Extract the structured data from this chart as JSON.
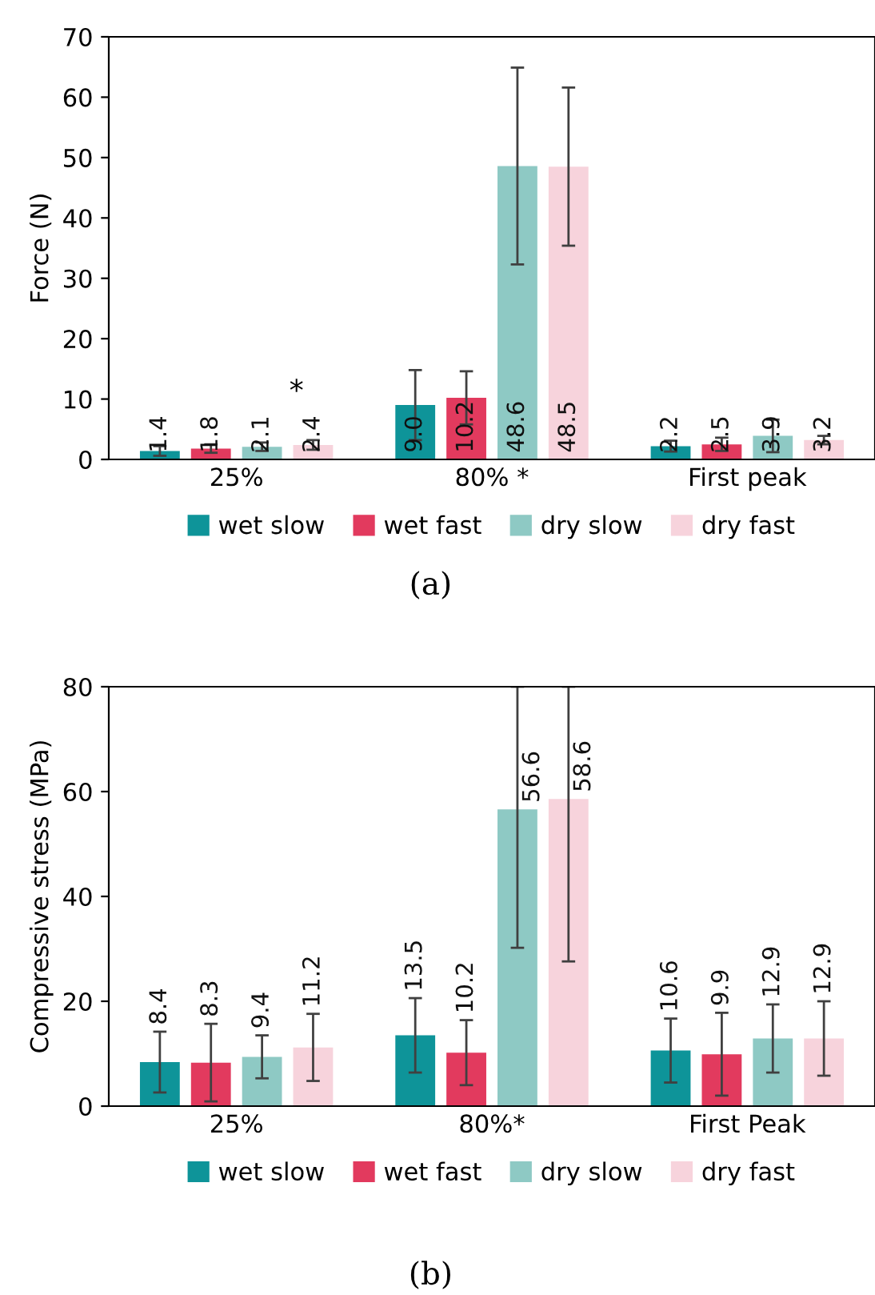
{
  "chart_data": [
    {
      "type": "bar",
      "title": "(a)",
      "ylabel": "Force (N)",
      "categories": [
        "25%",
        "80% *",
        "First peak"
      ],
      "ylim": [
        0,
        70
      ],
      "yticks": [
        0,
        10,
        20,
        30,
        40,
        50,
        60,
        70
      ],
      "grid": false,
      "legend": "bottom",
      "series": [
        {
          "name": "wet slow",
          "color": "#0e9499",
          "values": [
            1.4,
            9.0,
            2.2
          ],
          "value_labels": [
            "1.4",
            "9.0",
            "2.2"
          ],
          "errors": [
            0.8,
            5.8,
            0.9
          ]
        },
        {
          "name": "wet fast",
          "color": "#e23a5e",
          "values": [
            1.8,
            10.2,
            2.5
          ],
          "value_labels": [
            "1.8",
            "10.2",
            "2.5"
          ],
          "errors": [
            0.7,
            4.4,
            1.1
          ]
        },
        {
          "name": "dry slow",
          "color": "#8ec9c4",
          "values": [
            2.1,
            48.6,
            3.9
          ],
          "value_labels": [
            "2.1",
            "48.6",
            "3.9"
          ],
          "errors": [
            0.7,
            16.3,
            2.7
          ]
        },
        {
          "name": "dry fast",
          "color": "#f7d3dc",
          "values": [
            2.4,
            48.5,
            3.2
          ],
          "value_labels": [
            "2.4",
            "48.5",
            "3.2"
          ],
          "errors": [
            0.8,
            13.1,
            0.7
          ]
        }
      ],
      "annotations": [
        "*"
      ]
    },
    {
      "type": "bar",
      "title": "(b)",
      "ylabel": "Compressive stress (MPa)",
      "categories": [
        "25%",
        "80%*",
        "First Peak"
      ],
      "ylim": [
        0,
        80
      ],
      "yticks": [
        0,
        20,
        40,
        60,
        80
      ],
      "grid": false,
      "legend": "bottom",
      "series": [
        {
          "name": "wet slow",
          "color": "#0e9499",
          "values": [
            8.4,
            13.5,
            10.6
          ],
          "value_labels": [
            "8.4",
            "13.5",
            "10.6"
          ],
          "errors": [
            5.8,
            7.1,
            6.1
          ]
        },
        {
          "name": "wet fast",
          "color": "#e23a5e",
          "values": [
            8.3,
            10.2,
            9.9
          ],
          "value_labels": [
            "8.3",
            "10.2",
            "9.9"
          ],
          "errors": [
            7.4,
            6.2,
            7.9
          ]
        },
        {
          "name": "dry slow",
          "color": "#8ec9c4",
          "values": [
            9.4,
            56.6,
            12.9
          ],
          "value_labels": [
            "9.4",
            "56.6",
            "12.9"
          ],
          "errors": [
            4.1,
            [
              30.2,
              80
            ],
            6.5
          ]
        },
        {
          "name": "dry fast",
          "color": "#f7d3dc",
          "values": [
            11.2,
            58.6,
            12.9
          ],
          "value_labels": [
            "11.2",
            "58.6",
            "12.9"
          ],
          "errors": [
            6.4,
            [
              27.6,
              80
            ],
            7.1
          ]
        }
      ]
    }
  ]
}
